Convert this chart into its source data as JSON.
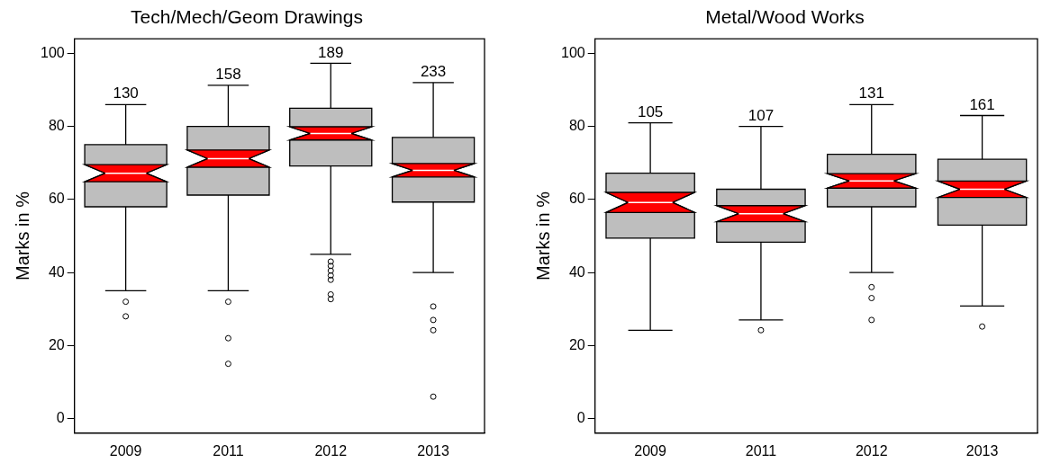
{
  "chart_data": [
    {
      "type": "box",
      "title": "Tech/Mech/Geom Drawings",
      "ylabel": "Marks in %",
      "categories": [
        "2009",
        "2011",
        "2012",
        "2013"
      ],
      "color": "#bebebe",
      "ylim": [
        -4,
        104
      ],
      "yticks": [
        0,
        20,
        40,
        60,
        80,
        100
      ],
      "grid": false,
      "legend": false,
      "boxes": [
        {
          "low": 35,
          "q1": 58,
          "median": 67.2,
          "q3": 75,
          "high": 86,
          "outliers": [
            32,
            28
          ]
        },
        {
          "low": 35,
          "q1": 61.2,
          "median": 71.2,
          "q3": 80,
          "high": 91.3,
          "outliers": [
            32,
            22,
            15
          ]
        },
        {
          "low": 45,
          "q1": 69.2,
          "median": 78.1,
          "q3": 85,
          "high": 97.3,
          "outliers": [
            43,
            41.8,
            40.5,
            39.2,
            38,
            34,
            32.7
          ]
        },
        {
          "low": 40,
          "q1": 59.3,
          "median": 68,
          "q3": 77,
          "high": 92,
          "outliers": [
            30.7,
            27,
            24.2,
            6
          ]
        }
      ],
      "annotations": [
        {
          "text": "130",
          "x": "2009",
          "y": 86
        },
        {
          "text": "158",
          "x": "2011",
          "y": 91.3
        },
        {
          "text": "189",
          "x": "2012",
          "y": 97.3
        },
        {
          "text": "233",
          "x": "2013",
          "y": 92
        }
      ]
    },
    {
      "type": "box",
      "title": "Metal/Wood Works",
      "ylabel": "Marks in %",
      "categories": [
        "2009",
        "2011",
        "2012",
        "2013"
      ],
      "color": "#bebebe",
      "ylim": [
        -4,
        104
      ],
      "yticks": [
        0,
        20,
        40,
        60,
        80,
        100
      ],
      "grid": false,
      "legend": false,
      "boxes": [
        {
          "low": 24.2,
          "q1": 49.4,
          "median": 59.2,
          "q3": 67.2,
          "high": 81
        },
        {
          "low": 27,
          "q1": 48.3,
          "median": 56.1,
          "q3": 62.8,
          "high": 80,
          "outliers": [
            24.2
          ]
        },
        {
          "low": 40,
          "q1": 58,
          "median": 65.1,
          "q3": 72.4,
          "high": 86,
          "outliers": [
            36,
            33,
            27
          ]
        },
        {
          "low": 30.8,
          "q1": 53,
          "median": 62.8,
          "q3": 71,
          "high": 83,
          "outliers": [
            25.2
          ]
        }
      ],
      "annotations": [
        {
          "text": "105",
          "x": "2009",
          "y": 81
        },
        {
          "text": "107",
          "x": "2011",
          "y": 80
        },
        {
          "text": "131",
          "x": "2012",
          "y": 86
        },
        {
          "text": "161",
          "x": "2013",
          "y": 83
        }
      ]
    }
  ]
}
